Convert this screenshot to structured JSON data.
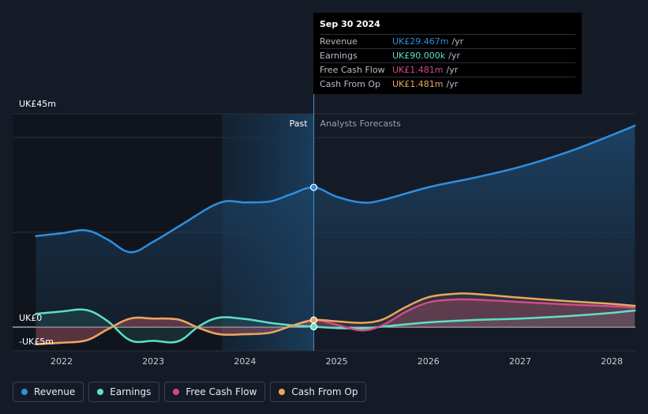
{
  "chart_data": {
    "type": "line",
    "title": "",
    "currency_note": "UK£",
    "y_axis": {
      "top_label": "UK£45m",
      "zero_label": "UK£0",
      "neg_label": "-UK£5m",
      "ylim": [
        -5,
        45
      ]
    },
    "x_axis": {
      "ticks": [
        "2022",
        "2023",
        "2024",
        "2025",
        "2026",
        "2027",
        "2028"
      ],
      "xlim": [
        2021.6,
        2028.3
      ]
    },
    "sections": {
      "past_label": "Past",
      "forecast_label": "Analysts Forecasts",
      "divider_x": 2024.75,
      "shade_start_x": 2023.75
    },
    "series": [
      {
        "name": "Revenue",
        "color": "#2e8fe0",
        "points": [
          [
            2021.72,
            19.2
          ],
          [
            2022.0,
            19.8
          ],
          [
            2022.27,
            20.4
          ],
          [
            2022.5,
            18.5
          ],
          [
            2022.75,
            15.8
          ],
          [
            2023.0,
            18.0
          ],
          [
            2023.3,
            21.5
          ],
          [
            2023.72,
            26.2
          ],
          [
            2024.0,
            26.3
          ],
          [
            2024.27,
            26.5
          ],
          [
            2024.5,
            28.0
          ],
          [
            2024.75,
            29.47
          ],
          [
            2025.0,
            27.5
          ],
          [
            2025.27,
            26.3
          ],
          [
            2025.5,
            26.8
          ],
          [
            2026.0,
            29.5
          ],
          [
            2026.5,
            31.5
          ],
          [
            2027.0,
            33.8
          ],
          [
            2027.5,
            36.8
          ],
          [
            2028.0,
            40.5
          ],
          [
            2028.25,
            42.5
          ]
        ]
      },
      {
        "name": "Earnings",
        "color": "#5ce0c8",
        "points": [
          [
            2021.72,
            2.8
          ],
          [
            2022.0,
            3.3
          ],
          [
            2022.27,
            3.6
          ],
          [
            2022.5,
            1.3
          ],
          [
            2022.75,
            -2.8
          ],
          [
            2023.0,
            -2.9
          ],
          [
            2023.27,
            -3.0
          ],
          [
            2023.5,
            0.2
          ],
          [
            2023.72,
            2.0
          ],
          [
            2024.0,
            1.7
          ],
          [
            2024.27,
            0.9
          ],
          [
            2024.5,
            0.4
          ],
          [
            2024.75,
            0.09
          ],
          [
            2025.0,
            -0.2
          ],
          [
            2025.27,
            -0.3
          ],
          [
            2025.5,
            0.1
          ],
          [
            2026.0,
            1.0
          ],
          [
            2026.5,
            1.5
          ],
          [
            2027.0,
            1.8
          ],
          [
            2027.5,
            2.3
          ],
          [
            2028.0,
            3.0
          ],
          [
            2028.25,
            3.5
          ]
        ]
      },
      {
        "name": "Free Cash Flow",
        "color": "#d14a8c",
        "points": [
          [
            2021.72,
            -3.6
          ],
          [
            2022.0,
            -3.3
          ],
          [
            2022.27,
            -2.8
          ],
          [
            2022.5,
            -0.5
          ],
          [
            2022.75,
            1.8
          ],
          [
            2023.0,
            1.8
          ],
          [
            2023.27,
            1.6
          ],
          [
            2023.5,
            -0.2
          ],
          [
            2023.72,
            -1.5
          ],
          [
            2024.0,
            -1.5
          ],
          [
            2024.27,
            -1.2
          ],
          [
            2024.5,
            0.2
          ],
          [
            2024.75,
            1.48
          ],
          [
            2025.0,
            0.5
          ],
          [
            2025.27,
            -0.7
          ],
          [
            2025.5,
            0.4
          ],
          [
            2025.75,
            3.2
          ],
          [
            2026.0,
            5.2
          ],
          [
            2026.27,
            5.8
          ],
          [
            2026.5,
            5.8
          ],
          [
            2027.0,
            5.3
          ],
          [
            2027.5,
            4.8
          ],
          [
            2028.0,
            4.4
          ],
          [
            2028.25,
            4.1
          ]
        ]
      },
      {
        "name": "Cash From Op",
        "color": "#e8a85c",
        "points": [
          [
            2021.72,
            -3.6
          ],
          [
            2022.0,
            -3.3
          ],
          [
            2022.27,
            -2.8
          ],
          [
            2022.5,
            -0.5
          ],
          [
            2022.75,
            1.8
          ],
          [
            2023.0,
            1.8
          ],
          [
            2023.27,
            1.6
          ],
          [
            2023.5,
            -0.2
          ],
          [
            2023.72,
            -1.5
          ],
          [
            2024.0,
            -1.5
          ],
          [
            2024.27,
            -1.2
          ],
          [
            2024.5,
            0.2
          ],
          [
            2024.75,
            1.48
          ],
          [
            2025.0,
            1.2
          ],
          [
            2025.27,
            0.9
          ],
          [
            2025.5,
            1.6
          ],
          [
            2025.75,
            4.2
          ],
          [
            2026.0,
            6.3
          ],
          [
            2026.27,
            7.0
          ],
          [
            2026.5,
            7.0
          ],
          [
            2027.0,
            6.2
          ],
          [
            2027.5,
            5.5
          ],
          [
            2028.0,
            4.9
          ],
          [
            2028.25,
            4.5
          ]
        ]
      }
    ]
  },
  "tooltip": {
    "date": "Sep 30 2024",
    "rows": [
      {
        "label": "Revenue",
        "value": "UK£29.467m",
        "unit": "/yr",
        "color": "#2e8fe0"
      },
      {
        "label": "Earnings",
        "value": "UK£90.000k",
        "unit": "/yr",
        "color": "#5ce0c8"
      },
      {
        "label": "Free Cash Flow",
        "value": "UK£1.481m",
        "unit": "/yr",
        "color": "#d14a8c"
      },
      {
        "label": "Cash From Op",
        "value": "UK£1.481m",
        "unit": "/yr",
        "color": "#e8a85c"
      }
    ]
  },
  "legend": [
    {
      "label": "Revenue",
      "color": "#2e8fe0"
    },
    {
      "label": "Earnings",
      "color": "#5ce0c8"
    },
    {
      "label": "Free Cash Flow",
      "color": "#d14a8c"
    },
    {
      "label": "Cash From Op",
      "color": "#e8a85c"
    }
  ]
}
